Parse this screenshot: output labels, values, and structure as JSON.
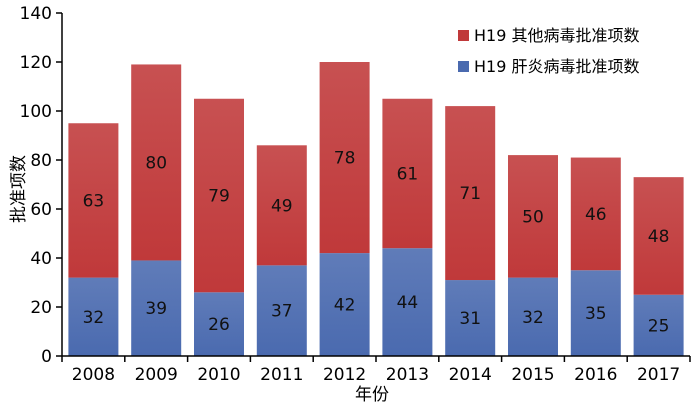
{
  "chart_data": {
    "type": "bar",
    "stacked": true,
    "categories": [
      "2008",
      "2009",
      "2010",
      "2011",
      "2012",
      "2013",
      "2014",
      "2015",
      "2016",
      "2017"
    ],
    "series": [
      {
        "name": "H19 肝炎病毒批准项数",
        "color": "#4a6aaf",
        "values": [
          32,
          39,
          26,
          37,
          42,
          44,
          31,
          32,
          35,
          25
        ]
      },
      {
        "name": "H19 其他病毒批准项数",
        "color": "#c0393a",
        "values": [
          63,
          80,
          79,
          49,
          78,
          61,
          71,
          50,
          46,
          48
        ]
      }
    ],
    "xlabel": "年份",
    "ylabel": "批准项数",
    "ylim": [
      0,
      140
    ],
    "yticks": [
      0,
      20,
      40,
      60,
      80,
      100,
      120,
      140
    ],
    "grid": false,
    "legend_position": "top-right"
  }
}
